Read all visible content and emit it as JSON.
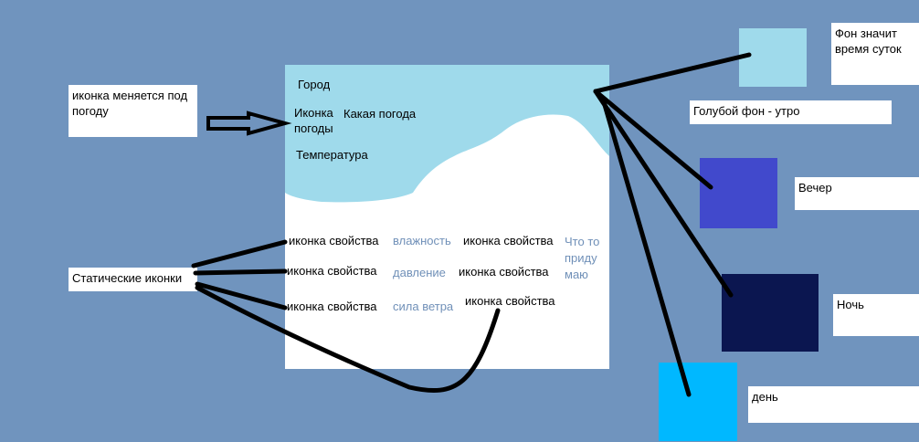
{
  "annotations": {
    "icon_changes": "иконка меняется под погоду",
    "static_icons": "Статические иконки",
    "background_means": "Фон значит время суток",
    "light_blue_morning": "Голубой фон - утро",
    "evening": "Вечер",
    "night": "Ночь",
    "day": "день"
  },
  "mockup": {
    "city": "Город",
    "weather_icon": "Иконка погоды",
    "weather_type": "Какая погода",
    "temperature": "Температура",
    "rows": [
      {
        "icon1": "иконка свойства",
        "value1": "влажность",
        "icon2": "иконка свойства",
        "value2": "Что то приду маю"
      },
      {
        "icon1": "иконка свойства",
        "value1": "давление",
        "icon2": "иконка свойства"
      },
      {
        "icon1": "иконка свойства",
        "value1": "сила ветра",
        "icon2": "иконка свойства"
      }
    ]
  },
  "colors": {
    "canvas": "#7094be",
    "sky": "#9fdaeb",
    "morning": "#9fdaeb",
    "evening": "#4149cc",
    "night": "#0b1650",
    "day": "#00b8ff",
    "muted_text": "#7090b8"
  }
}
